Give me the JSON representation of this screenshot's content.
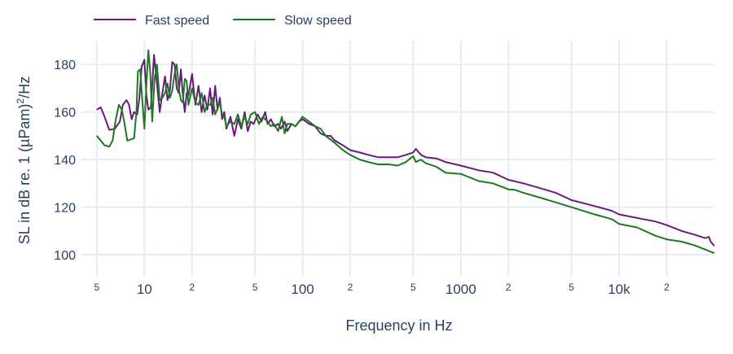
{
  "chart_data": {
    "type": "line",
    "xlabel": "Frequency in Hz",
    "ylabel": "SL in dB re. 1 (µPam)",
    "ylabel_sup": "2",
    "ylabel_suffix": "/Hz",
    "x_scale": "log",
    "xlim": [
      4,
      40000
    ],
    "ylim": [
      90.8,
      190
    ],
    "grid": true,
    "legend_position": "top-left",
    "y_ticks": [
      100,
      120,
      140,
      160,
      180
    ],
    "x_ticks": [
      {
        "value": 5,
        "label": "5",
        "major": false
      },
      {
        "value": 10,
        "label": "10",
        "major": true
      },
      {
        "value": 20,
        "label": "2",
        "major": false
      },
      {
        "value": 50,
        "label": "5",
        "major": false
      },
      {
        "value": 100,
        "label": "100",
        "major": true
      },
      {
        "value": 200,
        "label": "2",
        "major": false
      },
      {
        "value": 500,
        "label": "5",
        "major": false
      },
      {
        "value": 1000,
        "label": "1000",
        "major": true
      },
      {
        "value": 2000,
        "label": "2",
        "major": false
      },
      {
        "value": 5000,
        "label": "5",
        "major": false
      },
      {
        "value": 10000,
        "label": "10k",
        "major": true
      },
      {
        "value": 20000,
        "label": "2",
        "major": false
      }
    ],
    "series": [
      {
        "name": "Fast speed",
        "color": "#6a1a7e",
        "x": [
          5,
          5.3,
          5.6,
          6,
          6.5,
          7,
          7.3,
          7.7,
          8,
          8.3,
          8.6,
          9,
          9.3,
          9.6,
          10,
          10.3,
          10.6,
          11,
          11.5,
          12,
          12.5,
          13,
          13.5,
          14,
          14.5,
          15,
          15.5,
          16,
          16.5,
          17,
          17.5,
          18,
          18.5,
          19,
          20,
          21,
          22,
          23,
          24,
          25,
          26,
          27,
          28,
          29,
          30,
          31,
          32,
          33,
          35,
          37,
          39,
          41,
          43,
          45,
          47,
          49,
          52,
          55,
          58,
          60,
          63,
          66,
          70,
          73,
          77,
          80,
          85,
          90,
          95,
          100,
          105,
          110,
          120,
          130,
          140,
          150,
          160,
          180,
          200,
          230,
          260,
          300,
          350,
          400,
          450,
          500,
          520,
          560,
          600,
          700,
          800,
          1000,
          1300,
          1600,
          2000,
          2500,
          3000,
          4000,
          5000,
          7000,
          9000,
          10000,
          13000,
          17000,
          20000,
          25000,
          30000,
          35000,
          37000,
          38000,
          40000
        ],
        "y": [
          161,
          162,
          158,
          152.5,
          153,
          156,
          163,
          165,
          163,
          157,
          160,
          159,
          166,
          179,
          182,
          167,
          161,
          162,
          184,
          172,
          160,
          168,
          175,
          165,
          169,
          181,
          180,
          170,
          168,
          178,
          167,
          160,
          168,
          167,
          176,
          163,
          171,
          160,
          167,
          161,
          170,
          159,
          171,
          161,
          166,
          157,
          160,
          153,
          158,
          150,
          157,
          153,
          160,
          152,
          156,
          155,
          159,
          156,
          160,
          155,
          157,
          154,
          155,
          153,
          156,
          152,
          155,
          154,
          156,
          157,
          156,
          155,
          154,
          151,
          150,
          150,
          148,
          146,
          144,
          143,
          142,
          141,
          141,
          141,
          142,
          143,
          144.5,
          142,
          141,
          140.5,
          139,
          137.5,
          135.5,
          134.5,
          131.5,
          130,
          128.5,
          126,
          123,
          120.5,
          118.5,
          117,
          115.5,
          114,
          112.5,
          110,
          108.5,
          107,
          107.5,
          105.5,
          103.8
        ]
      },
      {
        "name": "Slow speed",
        "color": "#1b7a1e",
        "x": [
          5,
          5.3,
          5.6,
          6,
          6.3,
          6.6,
          6.9,
          7.2,
          7.5,
          7.8,
          8.2,
          8.6,
          8.9,
          9.1,
          9.4,
          9.7,
          10,
          10.3,
          10.6,
          10.9,
          11.2,
          11.6,
          12,
          12.5,
          13,
          13.5,
          14,
          14.5,
          15,
          15.5,
          16,
          16.5,
          17,
          17.5,
          18,
          18.5,
          19,
          20,
          21,
          22,
          23,
          24,
          25,
          26,
          27,
          28,
          30,
          31,
          32,
          33,
          35,
          37,
          39,
          41,
          43,
          45,
          47,
          50,
          53,
          56,
          60,
          63,
          66,
          70,
          74,
          77,
          80,
          85,
          90,
          95,
          100,
          110,
          120,
          130,
          140,
          160,
          180,
          200,
          230,
          260,
          300,
          350,
          400,
          450,
          500,
          520,
          560,
          600,
          700,
          800,
          1000,
          1300,
          1600,
          2000,
          2200,
          2500,
          3000,
          4000,
          5000,
          7000,
          9000,
          9500,
          10000,
          13000,
          17000,
          20000,
          25000,
          30000,
          40000
        ],
        "y": [
          150,
          148,
          146,
          145.5,
          148,
          157,
          163,
          161,
          155,
          148,
          148.5,
          149,
          160,
          177,
          178,
          165,
          153,
          172,
          186,
          176,
          156,
          174,
          180,
          165,
          166,
          168,
          172,
          166,
          169,
          176,
          180,
          170,
          165,
          164,
          174,
          173,
          163,
          170,
          164,
          163,
          168,
          160,
          163,
          163,
          166,
          159,
          164,
          159,
          158,
          154,
          156,
          155,
          159,
          154,
          158,
          155,
          159,
          160,
          155,
          158,
          156,
          154,
          155,
          152,
          158,
          151,
          155,
          155,
          154,
          156,
          158,
          156,
          154,
          153,
          150,
          147,
          144,
          142,
          140,
          139,
          138,
          138,
          137.5,
          139,
          141.5,
          139,
          140,
          138.5,
          137,
          134.5,
          134,
          131,
          130,
          127.5,
          127.3,
          126,
          124.5,
          122,
          120,
          117,
          115,
          114,
          113,
          111.5,
          108,
          106.5,
          105.5,
          104,
          100.7
        ]
      }
    ]
  }
}
